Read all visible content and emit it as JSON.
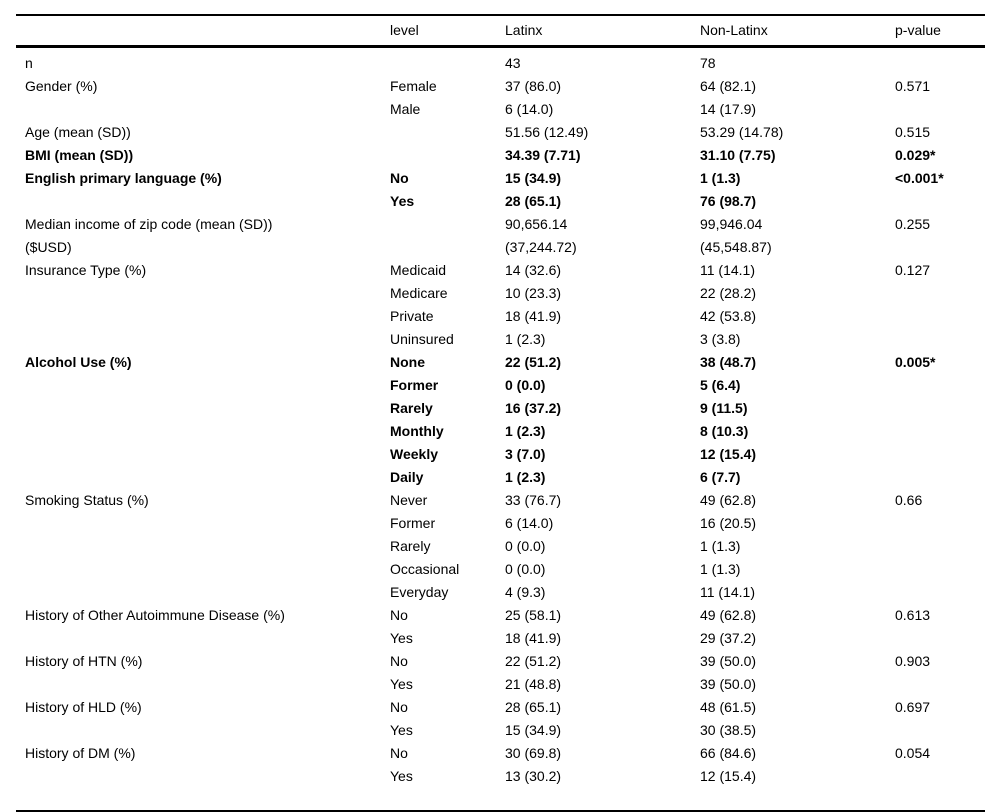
{
  "colors": {
    "background": "#ffffff",
    "text": "#000000",
    "rule": "#000000"
  },
  "table": {
    "columns": [
      "",
      "level",
      "Latinx",
      "Non-Latinx",
      "p-value"
    ],
    "rows": [
      {
        "label": "n",
        "level": "",
        "latinx": "43",
        "non_latinx": "78",
        "p": "",
        "bold": false
      },
      {
        "label": "Gender (%)",
        "level": "Female",
        "latinx": "37 (86.0)",
        "non_latinx": "64 (82.1)",
        "p": "0.571",
        "bold": false
      },
      {
        "label": "",
        "level": "Male",
        "latinx": "6 (14.0)",
        "non_latinx": "14 (17.9)",
        "p": "",
        "bold": false
      },
      {
        "label": "Age (mean (SD))",
        "level": "",
        "latinx": "51.56 (12.49)",
        "non_latinx": "53.29 (14.78)",
        "p": "0.515",
        "bold": false
      },
      {
        "label": "BMI (mean (SD))",
        "level": "",
        "latinx": "34.39 (7.71)",
        "non_latinx": "31.10 (7.75)",
        "p": "0.029*",
        "bold": true
      },
      {
        "label": "English primary language (%)",
        "level": "No",
        "latinx": "15 (34.9)",
        "non_latinx": "1 (1.3)",
        "p": "<0.001*",
        "bold": true
      },
      {
        "label": "",
        "level": "Yes",
        "latinx": "28 (65.1)",
        "non_latinx": "76 (98.7)",
        "p": "",
        "bold": true
      },
      {
        "label": "Median income of zip code (mean (SD))\n($USD)",
        "level": "",
        "latinx": "90,656.14\n(37,244.72)",
        "non_latinx": "99,946.04\n(45,548.87)",
        "p": "0.255",
        "bold": false
      },
      {
        "label": "Insurance Type (%)",
        "level": "Medicaid",
        "latinx": "14 (32.6)",
        "non_latinx": "11 (14.1)",
        "p": "0.127",
        "bold": false
      },
      {
        "label": "",
        "level": "Medicare",
        "latinx": "10 (23.3)",
        "non_latinx": "22 (28.2)",
        "p": "",
        "bold": false
      },
      {
        "label": "",
        "level": "Private",
        "latinx": "18 (41.9)",
        "non_latinx": "42 (53.8)",
        "p": "",
        "bold": false
      },
      {
        "label": "",
        "level": "Uninsured",
        "latinx": "1 (2.3)",
        "non_latinx": "3 (3.8)",
        "p": "",
        "bold": false
      },
      {
        "label": "Alcohol Use (%)",
        "level": "None",
        "latinx": "22 (51.2)",
        "non_latinx": "38 (48.7)",
        "p": "0.005*",
        "bold": true
      },
      {
        "label": "",
        "level": "Former",
        "latinx": "0 (0.0)",
        "non_latinx": "5 (6.4)",
        "p": "",
        "bold": true
      },
      {
        "label": "",
        "level": "Rarely",
        "latinx": "16 (37.2)",
        "non_latinx": "9 (11.5)",
        "p": "",
        "bold": true
      },
      {
        "label": "",
        "level": "Monthly",
        "latinx": "1 (2.3)",
        "non_latinx": "8 (10.3)",
        "p": "",
        "bold": true
      },
      {
        "label": "",
        "level": "Weekly",
        "latinx": "3 (7.0)",
        "non_latinx": "12 (15.4)",
        "p": "",
        "bold": true
      },
      {
        "label": "",
        "level": "Daily",
        "latinx": "1 (2.3)",
        "non_latinx": "6 (7.7)",
        "p": "",
        "bold": true
      },
      {
        "label": "Smoking Status (%)",
        "level": "Never",
        "latinx": "33 (76.7)",
        "non_latinx": "49 (62.8)",
        "p": "0.66",
        "bold": false
      },
      {
        "label": "",
        "level": "Former",
        "latinx": "6 (14.0)",
        "non_latinx": "16 (20.5)",
        "p": "",
        "bold": false
      },
      {
        "label": "",
        "level": "Rarely",
        "latinx": "0 (0.0)",
        "non_latinx": "1 (1.3)",
        "p": "",
        "bold": false
      },
      {
        "label": "",
        "level": "Occasional",
        "latinx": "0 (0.0)",
        "non_latinx": "1 (1.3)",
        "p": "",
        "bold": false
      },
      {
        "label": "",
        "level": "Everyday",
        "latinx": "4 (9.3)",
        "non_latinx": "11 (14.1)",
        "p": "",
        "bold": false
      },
      {
        "label": "History of Other Autoimmune Disease (%)",
        "level": "No",
        "latinx": "25 (58.1)",
        "non_latinx": "49 (62.8)",
        "p": "0.613",
        "bold": false
      },
      {
        "label": "",
        "level": "Yes",
        "latinx": "18 (41.9)",
        "non_latinx": "29 (37.2)",
        "p": "",
        "bold": false
      },
      {
        "label": "History of HTN (%)",
        "level": "No",
        "latinx": "22 (51.2)",
        "non_latinx": "39 (50.0)",
        "p": "0.903",
        "bold": false
      },
      {
        "label": "",
        "level": "Yes",
        "latinx": "21 (48.8)",
        "non_latinx": "39 (50.0)",
        "p": "",
        "bold": false
      },
      {
        "label": "History of HLD (%)",
        "level": "No",
        "latinx": "28 (65.1)",
        "non_latinx": "48 (61.5)",
        "p": "0.697",
        "bold": false
      },
      {
        "label": "",
        "level": "Yes",
        "latinx": "15 (34.9)",
        "non_latinx": "30 (38.5)",
        "p": "",
        "bold": false
      },
      {
        "label": "History of DM (%)",
        "level": "No",
        "latinx": "30 (69.8)",
        "non_latinx": "66 (84.6)",
        "p": "0.054",
        "bold": false
      },
      {
        "label": "",
        "level": "Yes",
        "latinx": "13 (30.2)",
        "non_latinx": "12 (15.4)",
        "p": "",
        "bold": false
      }
    ]
  }
}
